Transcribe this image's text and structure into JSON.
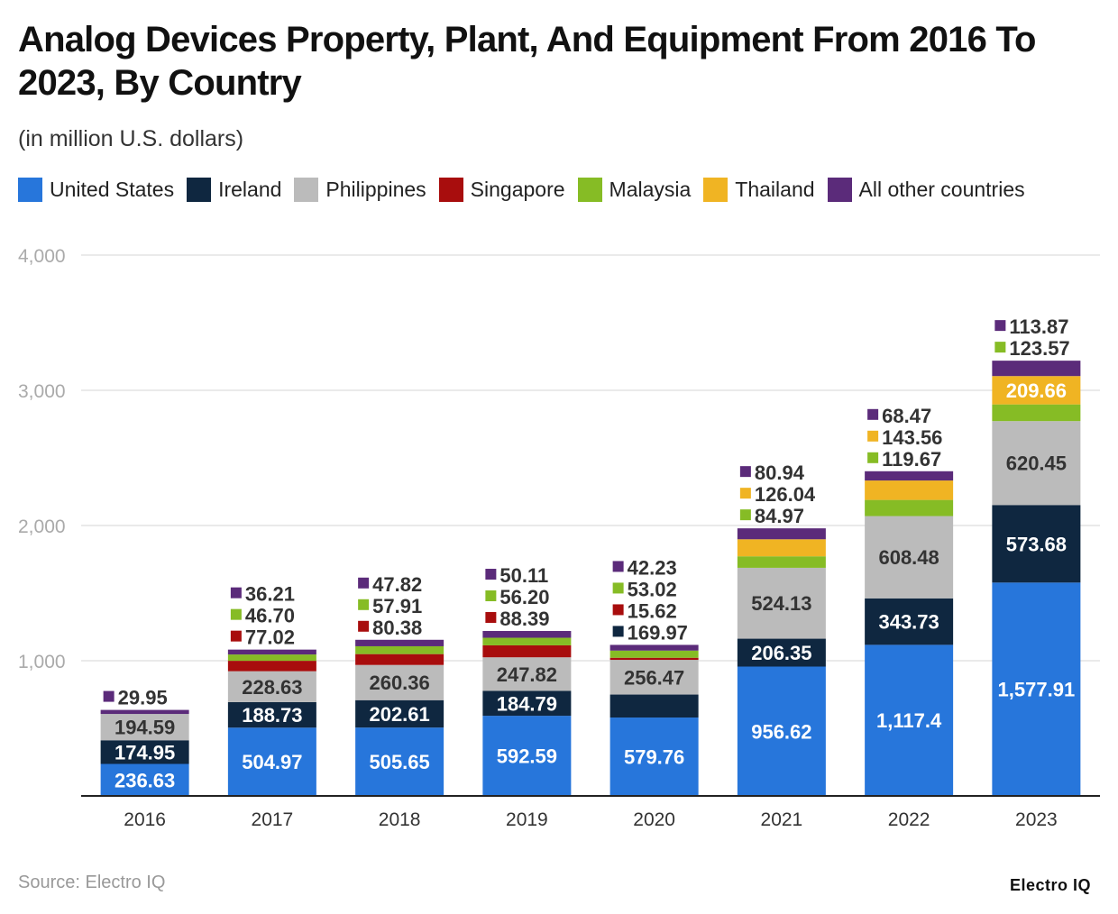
{
  "chart_data": {
    "type": "bar",
    "stacked": true,
    "title": "Analog Devices Property, Plant, And Equipment From 2016 To 2023, By Country",
    "subtitle": "(in million U.S. dollars)",
    "categories": [
      "2016",
      "2017",
      "2018",
      "2019",
      "2020",
      "2021",
      "2022",
      "2023"
    ],
    "ylim": [
      0,
      4000
    ],
    "yticks": [
      "0",
      "1,000",
      "2,000",
      "3,000",
      "4,000"
    ],
    "yticks_values": [
      0,
      1000,
      2000,
      3000,
      4000
    ],
    "grid": true,
    "legend_position": "top",
    "series": [
      {
        "name": "United States",
        "color": "#2776db",
        "label_color": "#ffffff",
        "values": [
          236.63,
          504.97,
          505.65,
          592.59,
          579.76,
          956.62,
          1117.4,
          1577.91
        ],
        "labels": [
          "236.63",
          "504.97",
          "505.65",
          "592.59",
          "579.76",
          "956.62",
          "1,117.4",
          "1,577.91"
        ]
      },
      {
        "name": "Ireland",
        "color": "#0f2740",
        "label_color": "#ffffff",
        "values": [
          174.95,
          188.73,
          202.61,
          184.79,
          169.97,
          206.35,
          343.73,
          573.68
        ],
        "labels": [
          "174.95",
          "188.73",
          "202.61",
          "184.79",
          "169.97",
          "206.35",
          "343.73",
          "573.68"
        ]
      },
      {
        "name": "Philippines",
        "color": "#bbbbbb",
        "label_color": "#333333",
        "values": [
          194.59,
          228.63,
          260.36,
          247.82,
          256.47,
          524.13,
          608.48,
          620.45
        ],
        "labels": [
          "194.59",
          "228.63",
          "260.36",
          "247.82",
          "256.47",
          "524.13",
          "608.48",
          "620.45"
        ]
      },
      {
        "name": "Singapore",
        "color": "#a80d0d",
        "label_color": "#ffffff",
        "values": [
          0,
          77.02,
          80.38,
          88.39,
          15.62,
          0,
          0,
          0
        ],
        "labels": [
          "",
          "77.02",
          "80.38",
          "88.39",
          "15.62",
          "",
          "",
          ""
        ]
      },
      {
        "name": "Malaysia",
        "color": "#86bc25",
        "label_color": "#333333",
        "values": [
          0,
          46.7,
          57.91,
          56.2,
          53.02,
          84.97,
          119.67,
          123.57
        ],
        "labels": [
          "",
          "46.70",
          "57.91",
          "56.20",
          "53.02",
          "84.97",
          "119.67",
          "123.57"
        ]
      },
      {
        "name": "Thailand",
        "color": "#f0b423",
        "label_color": "#ffffff",
        "values": [
          0,
          0,
          0,
          0,
          0,
          126.04,
          143.56,
          209.66
        ],
        "labels": [
          "",
          "",
          "",
          "",
          "",
          "126.04",
          "143.56",
          "209.66"
        ]
      },
      {
        "name": "All other countries",
        "color": "#5b2b7a",
        "label_color": "#ffffff",
        "values": [
          29.95,
          36.21,
          47.82,
          50.11,
          42.23,
          80.94,
          68.47,
          113.87
        ],
        "labels": [
          "29.95",
          "36.21",
          "47.82",
          "50.11",
          "42.23",
          "80.94",
          "68.47",
          "113.87"
        ]
      }
    ]
  },
  "source": "Source: Electro IQ",
  "brand": "Electro IQ"
}
